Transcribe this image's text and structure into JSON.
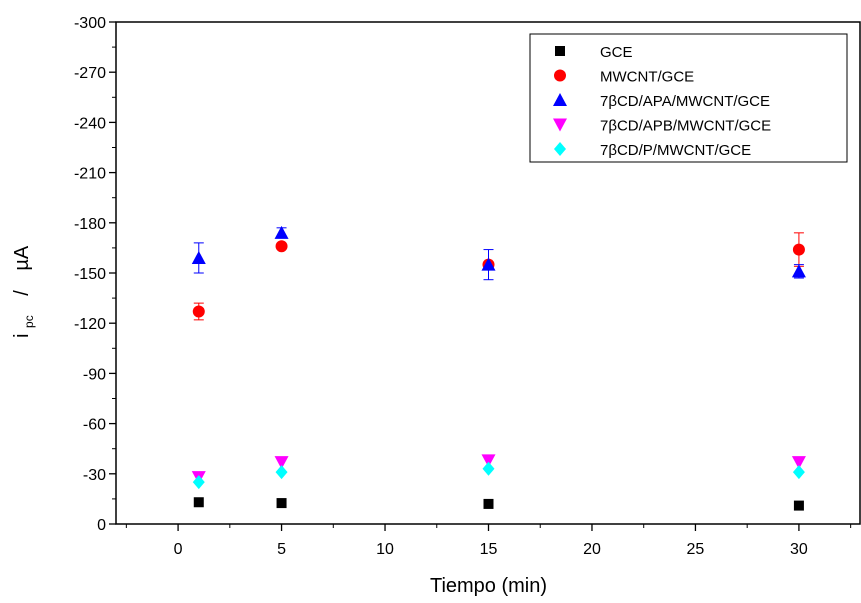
{
  "chart_data": {
    "type": "scatter",
    "xlabel": "Tiempo (min)",
    "ylabel": {
      "main": "i",
      "sub": "pc",
      "sep": "/",
      "unit": "µA"
    },
    "xlim": [
      -3,
      33
    ],
    "ylim": [
      0,
      -300
    ],
    "y_inverted": true,
    "x_ticks": [
      0,
      5,
      10,
      15,
      20,
      25,
      30
    ],
    "y_ticks": [
      0,
      -30,
      -60,
      -90,
      -120,
      -150,
      -180,
      -210,
      -240,
      -270,
      -300
    ],
    "grid": false,
    "legend_position": "top-right",
    "series": [
      {
        "name": "GCE",
        "marker": "square",
        "color": "#000000",
        "x": [
          1,
          5,
          15,
          30
        ],
        "y": [
          -13,
          -12.5,
          -12,
          -11
        ],
        "err": [
          0,
          0,
          0,
          0
        ]
      },
      {
        "name": "MWCNT/GCE",
        "marker": "circle",
        "color": "#ff0000",
        "x": [
          1,
          5,
          15,
          30
        ],
        "y": [
          -127,
          -166,
          -155,
          -164
        ],
        "err": [
          5,
          0,
          0,
          10
        ]
      },
      {
        "name": "7βCD/APA/MWCNT/GCE",
        "marker": "triangle-up",
        "color": "#0000ff",
        "x": [
          1,
          5,
          15,
          30
        ],
        "y": [
          -159,
          -174,
          -155,
          -151
        ],
        "err": [
          9,
          3,
          9,
          4
        ]
      },
      {
        "name": "7βCD/APB/MWCNT/GCE",
        "marker": "triangle-down",
        "color": "#ff00ff",
        "x": [
          1,
          5,
          15,
          30
        ],
        "y": [
          -28,
          -37,
          -38,
          -37
        ],
        "err": [
          0,
          0,
          0,
          0
        ]
      },
      {
        "name": "7βCD/P/MWCNT/GCE",
        "marker": "diamond",
        "color": "#00ffff",
        "x": [
          1,
          5,
          15,
          30
        ],
        "y": [
          -25,
          -31,
          -33,
          -31
        ],
        "err": [
          0,
          0,
          0,
          0
        ]
      }
    ]
  }
}
